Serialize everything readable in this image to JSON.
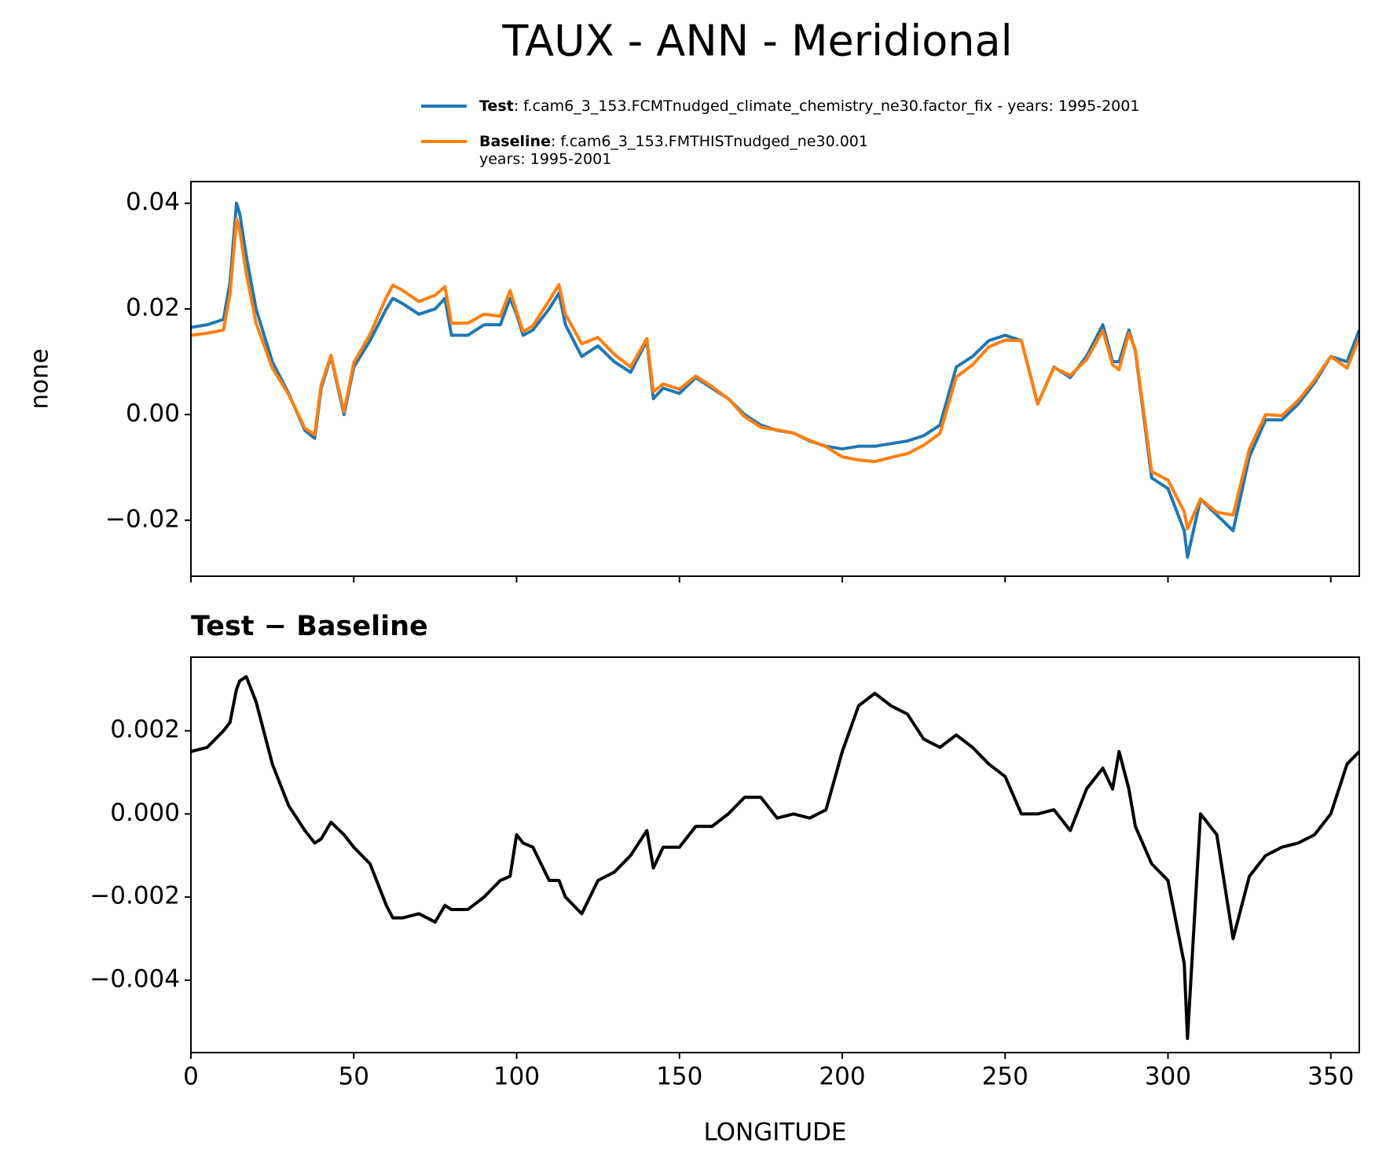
{
  "chart_data": [
    {
      "type": "line",
      "title": "TAUX - ANN - Meridional",
      "ylabel": "none",
      "x": [
        0,
        5,
        10,
        12,
        14,
        15,
        17,
        20,
        25,
        30,
        35,
        38,
        40,
        43,
        47,
        50,
        55,
        60,
        62,
        65,
        70,
        75,
        78,
        80,
        85,
        90,
        95,
        98,
        100,
        102,
        105,
        110,
        113,
        115,
        120,
        125,
        130,
        135,
        140,
        142,
        145,
        150,
        155,
        160,
        165,
        170,
        175,
        180,
        185,
        190,
        195,
        200,
        205,
        210,
        215,
        220,
        225,
        230,
        235,
        240,
        245,
        250,
        255,
        260,
        265,
        270,
        275,
        280,
        283,
        285,
        288,
        290,
        295,
        300,
        305,
        306,
        310,
        315,
        320,
        325,
        330,
        335,
        340,
        345,
        350,
        355,
        358.75
      ],
      "series": [
        {
          "name": "Test",
          "description": [
            ": f.cam6_3_153.FCMTnudged_climate_chemistry_ne30.factor_fix - years: 1995-2001"
          ],
          "color": "#1f77b4",
          "values": [
            0.0165,
            0.017,
            0.018,
            0.025,
            0.04,
            0.038,
            0.03,
            0.02,
            0.01,
            0.004,
            -0.003,
            -0.0045,
            0.005,
            0.011,
            0.0,
            0.009,
            0.014,
            0.02,
            0.022,
            0.021,
            0.019,
            0.02,
            0.022,
            0.015,
            0.015,
            0.017,
            0.017,
            0.022,
            0.019,
            0.015,
            0.016,
            0.02,
            0.023,
            0.017,
            0.011,
            0.013,
            0.01,
            0.008,
            0.014,
            0.003,
            0.005,
            0.004,
            0.007,
            0.005,
            0.003,
            0.0,
            -0.002,
            -0.003,
            -0.0035,
            -0.005,
            -0.006,
            -0.0065,
            -0.006,
            -0.006,
            -0.0055,
            -0.005,
            -0.004,
            -0.002,
            0.009,
            0.011,
            0.014,
            0.015,
            0.014,
            0.002,
            0.009,
            0.007,
            0.011,
            0.017,
            0.01,
            0.01,
            0.016,
            0.012,
            -0.012,
            -0.014,
            -0.022,
            -0.027,
            -0.016,
            -0.019,
            -0.022,
            -0.008,
            -0.001,
            -0.001,
            0.002,
            0.006,
            0.011,
            0.01,
            0.016
          ]
        },
        {
          "name": "Baseline",
          "description": [
            ": f.cam6_3_153.FMTHISTnudged_ne30.001",
            "years: 1995-2001"
          ],
          "color": "#ff7f0e",
          "values": [
            0.015,
            0.0154,
            0.016,
            0.0228,
            0.037,
            0.0348,
            0.0267,
            0.0173,
            0.0088,
            0.0038,
            -0.0026,
            -0.0038,
            0.0056,
            0.0112,
            0.0005,
            0.0098,
            0.0152,
            0.0222,
            0.0245,
            0.0235,
            0.0214,
            0.0226,
            0.0242,
            0.0173,
            0.0173,
            0.019,
            0.0186,
            0.0235,
            0.0195,
            0.0157,
            0.0168,
            0.0216,
            0.0246,
            0.019,
            0.0134,
            0.0146,
            0.0114,
            0.009,
            0.0144,
            0.0043,
            0.0058,
            0.0048,
            0.0073,
            0.0053,
            0.003,
            -0.0004,
            -0.0024,
            -0.0029,
            -0.0035,
            -0.0049,
            -0.0061,
            -0.008,
            -0.0086,
            -0.0089,
            -0.0081,
            -0.0074,
            -0.0058,
            -0.0036,
            0.0071,
            0.0094,
            0.0128,
            0.0141,
            0.014,
            0.002,
            0.0089,
            0.0074,
            0.0104,
            0.0159,
            0.0094,
            0.0085,
            0.0154,
            0.0123,
            -0.0108,
            -0.0124,
            -0.0184,
            -0.0216,
            -0.016,
            -0.0185,
            -0.019,
            -0.0065,
            0.0,
            -0.0002,
            0.0027,
            0.0065,
            0.011,
            0.0088,
            0.0145
          ]
        }
      ],
      "xlim": [
        0,
        358.75
      ],
      "xticks": [
        0,
        50,
        100,
        150,
        200,
        250,
        300,
        350
      ],
      "xtick_labels": false,
      "ylim": [
        -0.0306,
        0.0441
      ],
      "yticks": [
        {
          "value": -0.02,
          "label": "−0.02"
        },
        {
          "value": 0,
          "label": "0.00"
        },
        0.02,
        0.04
      ],
      "legend": "top-right"
    },
    {
      "type": "line",
      "title": "Test − Baseline",
      "xlabel": "LONGITUDE",
      "x": [
        0,
        5,
        10,
        12,
        14,
        15,
        17,
        20,
        25,
        30,
        35,
        38,
        40,
        43,
        47,
        50,
        55,
        60,
        62,
        65,
        70,
        75,
        78,
        80,
        85,
        90,
        95,
        98,
        100,
        102,
        105,
        110,
        113,
        115,
        120,
        125,
        130,
        135,
        140,
        142,
        145,
        150,
        155,
        160,
        165,
        170,
        175,
        180,
        185,
        190,
        195,
        200,
        205,
        210,
        215,
        220,
        225,
        230,
        235,
        240,
        245,
        250,
        255,
        260,
        265,
        270,
        275,
        280,
        283,
        285,
        288,
        290,
        295,
        300,
        305,
        306,
        310,
        315,
        320,
        325,
        330,
        335,
        340,
        345,
        350,
        355,
        358.75
      ],
      "series": [
        {
          "color": "#000000",
          "values": [
            0.0015,
            0.0016,
            0.002,
            0.0022,
            0.003,
            0.0032,
            0.0033,
            0.0027,
            0.0012,
            0.0002,
            -0.0004,
            -0.0007,
            -0.0006,
            -0.0002,
            -0.0005,
            -0.0008,
            -0.0012,
            -0.0022,
            -0.0025,
            -0.0025,
            -0.0024,
            -0.0026,
            -0.0022,
            -0.0023,
            -0.0023,
            -0.002,
            -0.0016,
            -0.0015,
            -0.0005,
            -0.0007,
            -0.0008,
            -0.0016,
            -0.0016,
            -0.002,
            -0.0024,
            -0.0016,
            -0.0014,
            -0.001,
            -0.0004,
            -0.0013,
            -0.0008,
            -0.0008,
            -0.0003,
            -0.0003,
            0.0,
            0.0004,
            0.0004,
            -0.0001,
            0.0,
            -0.0001,
            0.0001,
            0.0015,
            0.0026,
            0.0029,
            0.0026,
            0.0024,
            0.0018,
            0.0016,
            0.0019,
            0.0016,
            0.0012,
            0.0009,
            0.0,
            0.0,
            0.0001,
            -0.0004,
            0.0006,
            0.0011,
            0.0006,
            0.0015,
            0.0006,
            -0.0003,
            -0.0012,
            -0.0016,
            -0.0036,
            -0.0054,
            0.0,
            -0.0005,
            -0.003,
            -0.0015,
            -0.001,
            -0.0008,
            -0.0007,
            -0.0005,
            0.0,
            0.0012,
            0.0015
          ]
        }
      ],
      "xlim": [
        0,
        358.75
      ],
      "xticks": [
        0,
        50,
        100,
        150,
        200,
        250,
        300,
        350
      ],
      "xtick_labels": true,
      "ylim": [
        -0.00574,
        0.00377
      ],
      "yticks": [
        {
          "value": -0.004,
          "label": "−0.004"
        },
        {
          "value": -0.002,
          "label": "−0.002"
        },
        {
          "value": 0,
          "label": "0.000"
        },
        0.002
      ]
    }
  ]
}
